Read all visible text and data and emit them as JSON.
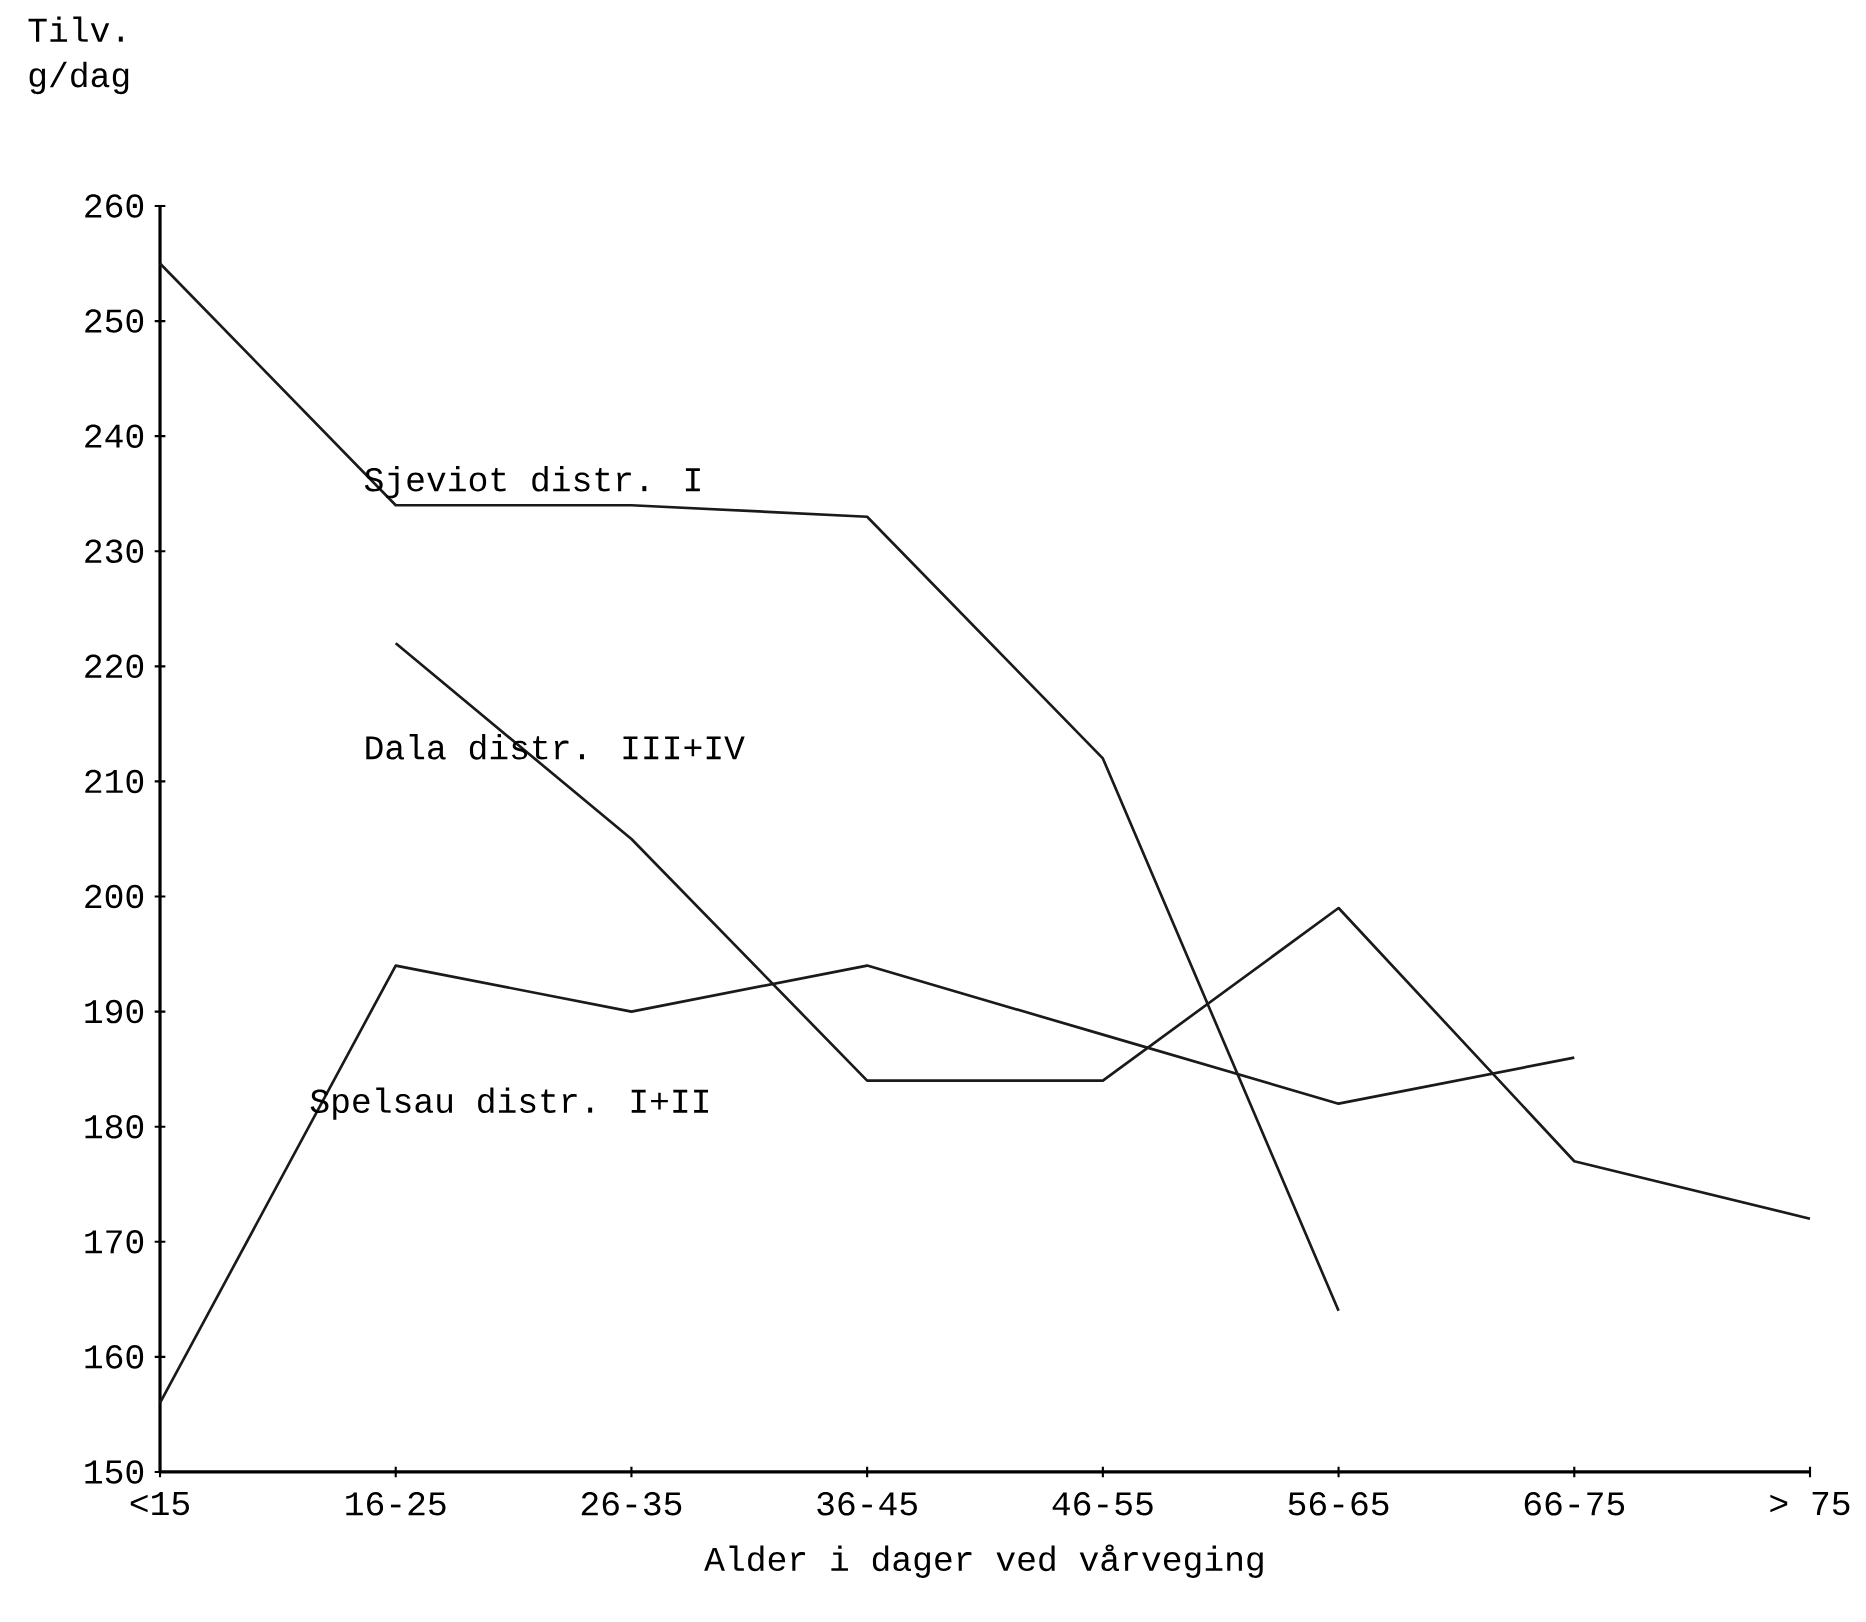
{
  "chart_data": {
    "type": "line",
    "ylabel": "Tilv. g/dag",
    "xlabel": "Alder i dager ved vårveging",
    "categories": [
      "<15",
      "16-25",
      "26-35",
      "36-45",
      "46-55",
      "56-65",
      "66-75",
      "> 75"
    ],
    "series": [
      {
        "name": "Sjeviot distr. I",
        "color": "#1a1a1a",
        "values": [
          255,
          234,
          234,
          233,
          212,
          164,
          null,
          null
        ]
      },
      {
        "name": "Dala distr. III+IV",
        "color": "#1a1a1a",
        "values": [
          null,
          222,
          205,
          184,
          184,
          199,
          177,
          172
        ]
      },
      {
        "name": "Spelsau distr. I+II",
        "color": "#1a1a1a",
        "values": [
          156,
          194,
          190,
          194,
          188,
          182,
          186,
          null
        ]
      }
    ],
    "ylim": [
      150,
      260
    ],
    "yticks": [
      150,
      160,
      170,
      180,
      190,
      200,
      210,
      220,
      230,
      240,
      250,
      260
    ],
    "grid": false,
    "legend": false,
    "marker": "none",
    "line_style": "solid"
  }
}
